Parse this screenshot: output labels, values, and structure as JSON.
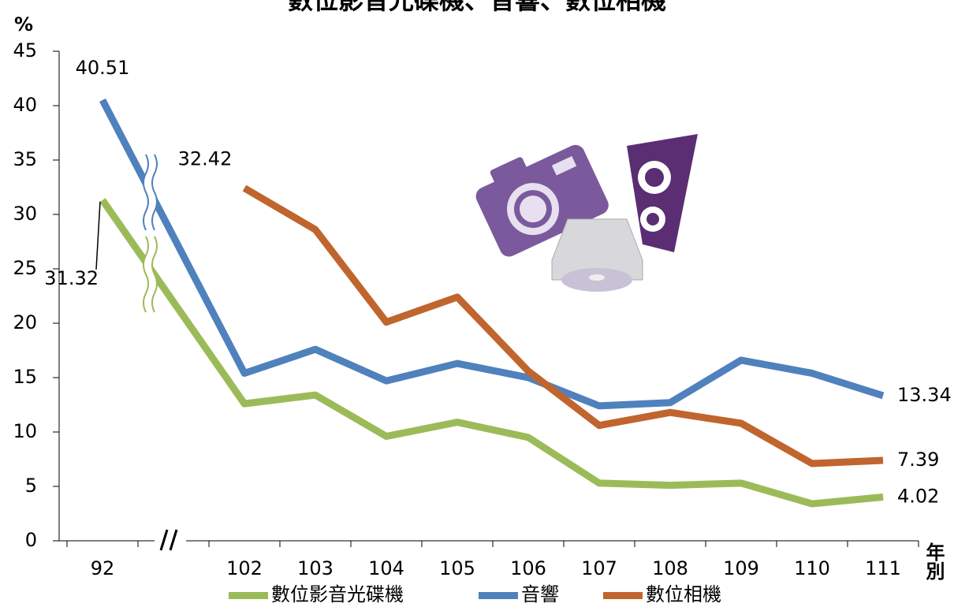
{
  "chart_data": {
    "type": "line",
    "title": "數位影音光碟機、音響、數位相機",
    "y_label": "%",
    "x_label": "年別",
    "categories": [
      "92",
      "102",
      "103",
      "104",
      "105",
      "106",
      "107",
      "108",
      "109",
      "110",
      "111"
    ],
    "series": [
      {
        "name": "數位影音光碟機",
        "color": "#9bbb59",
        "label_color": "#7aa33a",
        "values": [
          31.32,
          12.6,
          13.4,
          9.6,
          10.9,
          9.5,
          5.3,
          5.1,
          5.3,
          3.4,
          4.02
        ],
        "value_labels": [
          "31.32",
          null,
          null,
          null,
          null,
          null,
          null,
          null,
          null,
          null,
          "4.02"
        ]
      },
      {
        "name": "音響",
        "color": "#4f81bd",
        "label_color": "#2e5d91",
        "values": [
          40.51,
          15.4,
          17.6,
          14.7,
          16.3,
          15.0,
          12.4,
          12.7,
          16.6,
          15.4,
          13.34
        ],
        "value_labels": [
          "40.51",
          null,
          null,
          null,
          null,
          null,
          null,
          null,
          null,
          null,
          "13.34"
        ]
      },
      {
        "name": "數位相機",
        "color": "#c0652e",
        "label_color": "#c0504d",
        "values": [
          null,
          32.42,
          28.6,
          20.1,
          22.4,
          15.6,
          10.6,
          11.8,
          10.8,
          7.1,
          7.39
        ],
        "value_labels": [
          null,
          "32.42",
          null,
          null,
          null,
          null,
          null,
          null,
          null,
          null,
          "7.39"
        ]
      }
    ],
    "ylim": [
      0,
      45
    ],
    "yticks": [
      0,
      5,
      10,
      15,
      20,
      25,
      30,
      35,
      40,
      45
    ],
    "grid": false
  }
}
